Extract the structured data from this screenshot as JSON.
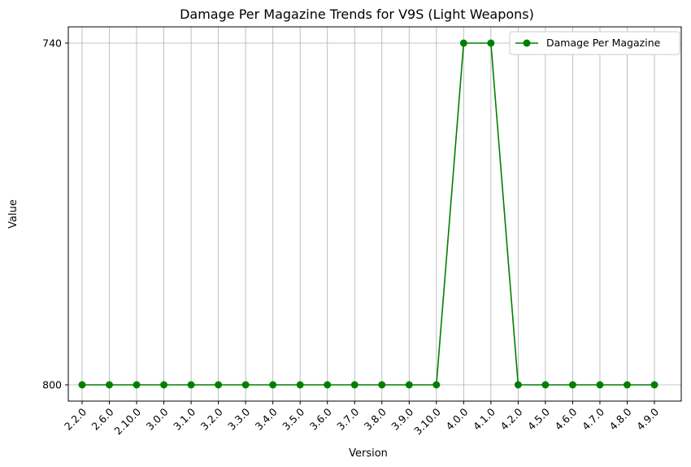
{
  "chart_data": {
    "type": "line",
    "title": "Damage Per Magazine Trends for V9S (Light Weapons)",
    "xlabel": "Version",
    "ylabel": "Value",
    "categories": [
      "2.2.0",
      "2.6.0",
      "2.10.0",
      "3.0.0",
      "3.1.0",
      "3.2.0",
      "3.3.0",
      "3.4.0",
      "3.5.0",
      "3.6.0",
      "3.7.0",
      "3.8.0",
      "3.9.0",
      "3.10.0",
      "4.0.0",
      "4.1.0",
      "4.2.0",
      "4.5.0",
      "4.6.0",
      "4.7.0",
      "4.8.0",
      "4.9.0"
    ],
    "y_ticks": [
      "740",
      "800"
    ],
    "series": [
      {
        "name": "Damage Per Magazine",
        "color": "#008000",
        "values": [
          "800",
          "800",
          "800",
          "800",
          "800",
          "800",
          "800",
          "800",
          "800",
          "800",
          "800",
          "800",
          "800",
          "800",
          "740",
          "740",
          "800",
          "800",
          "800",
          "800",
          "800",
          "800"
        ]
      }
    ],
    "grid": true,
    "legend_position": "top-right",
    "marker": "circle"
  }
}
